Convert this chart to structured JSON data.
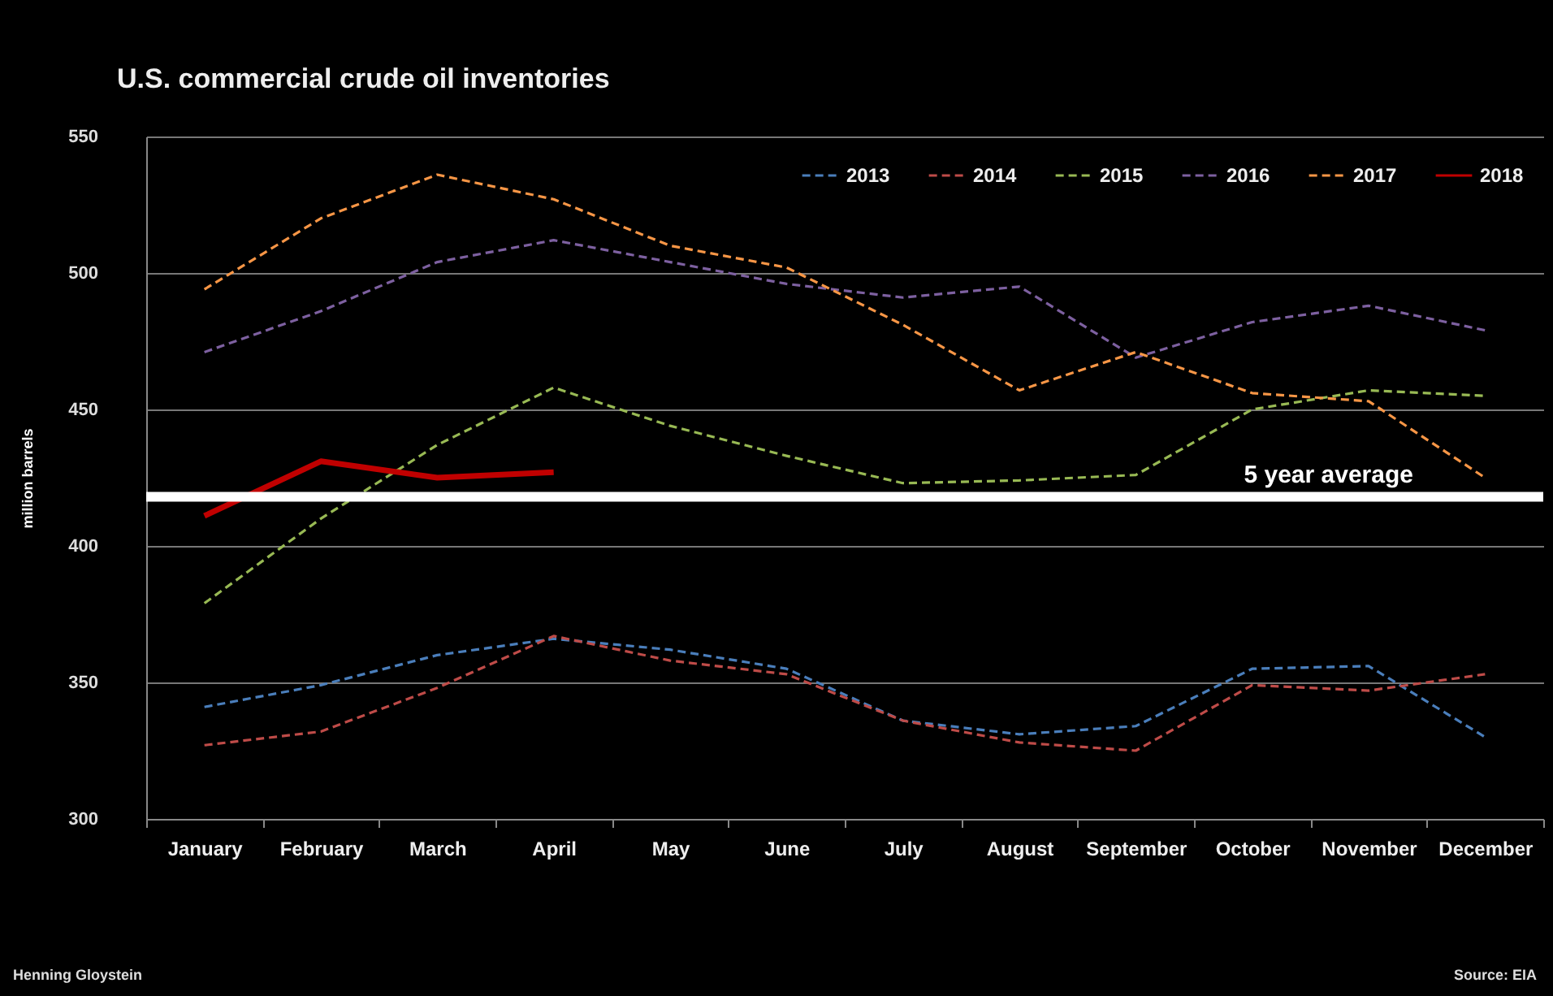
{
  "chart_data": {
    "type": "line",
    "title": "U.S. commercial crude oil inventories",
    "ylabel": "million barrels",
    "categories": [
      "January",
      "February",
      "March",
      "April",
      "May",
      "June",
      "July",
      "August",
      "September",
      "October",
      "November",
      "December"
    ],
    "series": [
      {
        "name": "2013",
        "color": "#4a7ebb",
        "line_style": "dashed",
        "values": [
          341,
          349,
          360,
          366,
          362,
          355,
          336,
          331,
          334,
          355,
          356,
          330
        ]
      },
      {
        "name": "2014",
        "color": "#be4b48",
        "line_style": "dashed",
        "values": [
          327,
          332,
          348,
          367,
          358,
          353,
          336,
          328,
          325,
          349,
          347,
          353
        ]
      },
      {
        "name": "2015",
        "color": "#98b954",
        "line_style": "dashed",
        "values": [
          379,
          410,
          437,
          458,
          444,
          433,
          423,
          424,
          426,
          450,
          457,
          455
        ]
      },
      {
        "name": "2016",
        "color": "#7d60a0",
        "line_style": "dashed",
        "values": [
          471,
          486,
          504,
          512,
          504,
          496,
          491,
          495,
          469,
          482,
          488,
          479
        ]
      },
      {
        "name": "2017",
        "color": "#f79646",
        "line_style": "dashed",
        "values": [
          494,
          520,
          536,
          527,
          510,
          502,
          481,
          457,
          471,
          456,
          453,
          425
        ]
      },
      {
        "name": "2018",
        "color": "#c00000",
        "line_style": "solid",
        "values": [
          411,
          431,
          425,
          427,
          null,
          null,
          null,
          null,
          null,
          null,
          null,
          null
        ]
      }
    ],
    "ylim": [
      300,
      550
    ],
    "yticks": [
      300,
      350,
      400,
      450,
      500,
      550
    ],
    "grid": "y",
    "legend": "top right",
    "ref_lines": [
      {
        "axis": "y",
        "value": 418,
        "label": "5 year average",
        "color": "#ffffff"
      }
    ],
    "annotations": [
      "Henning Gloystein",
      "Source: EIA"
    ]
  }
}
